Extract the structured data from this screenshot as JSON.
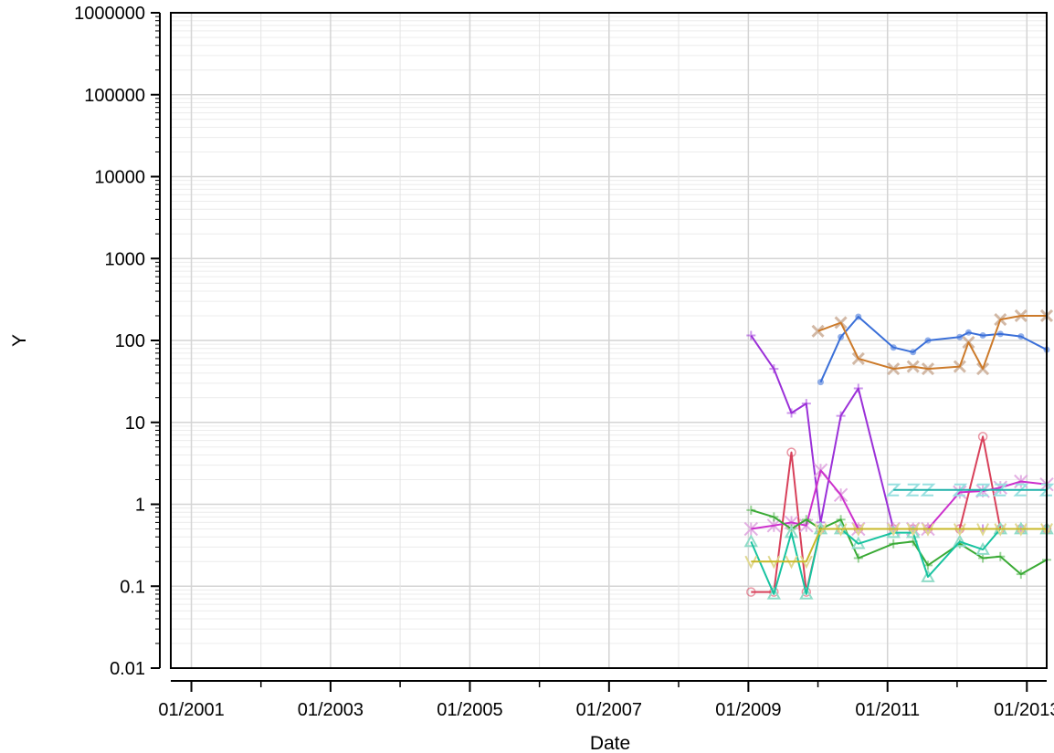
{
  "chart_data": {
    "type": "line",
    "xlabel": "Date",
    "ylabel": "Y",
    "y_scale": "log",
    "ylim": [
      0.01,
      1000000
    ],
    "xlim": [
      "2000-09-15",
      "2013-04-15"
    ],
    "y_ticks": [
      "0.01",
      "0.1",
      "1",
      "10",
      "100",
      "1000",
      "10000",
      "100000",
      "1000000"
    ],
    "x_ticks": [
      "2001-01-01",
      "2003-01-01",
      "2005-01-01",
      "2007-01-01",
      "2009-01-01",
      "2011-01-01",
      "2013-01-01"
    ],
    "x_tick_labels": [
      "01/2001",
      "01/2003",
      "01/2005",
      "01/2007",
      "01/2009",
      "01/2011",
      "01/2013"
    ],
    "grid": true,
    "legend": "none",
    "series": [
      {
        "color": "#3a6fd8",
        "marker": "dot",
        "points": [
          [
            "2010-01-15",
            31
          ],
          [
            "2010-05-01",
            110
          ],
          [
            "2010-08-01",
            195
          ],
          [
            "2011-02-01",
            82
          ],
          [
            "2011-05-15",
            72
          ],
          [
            "2011-08-01",
            100
          ],
          [
            "2012-01-15",
            110
          ],
          [
            "2012-03-01",
            125
          ],
          [
            "2012-05-15",
            115
          ],
          [
            "2012-08-15",
            120
          ],
          [
            "2012-12-01",
            112
          ],
          [
            "2013-04-15",
            77
          ]
        ]
      },
      {
        "color": "#cc7a2a",
        "marker": "x",
        "points": [
          [
            "2010-01-01",
            130
          ],
          [
            "2010-05-01",
            165
          ],
          [
            "2010-08-01",
            60
          ],
          [
            "2011-02-01",
            45
          ],
          [
            "2011-05-15",
            48
          ],
          [
            "2011-08-01",
            45
          ],
          [
            "2012-01-15",
            48
          ],
          [
            "2012-03-01",
            95
          ],
          [
            "2012-05-15",
            45
          ],
          [
            "2012-08-15",
            180
          ],
          [
            "2012-12-01",
            200
          ],
          [
            "2013-04-15",
            200
          ]
        ]
      },
      {
        "color": "#9b30d8",
        "marker": "plus",
        "points": [
          [
            "2009-01-15",
            115
          ],
          [
            "2009-05-15",
            45
          ],
          [
            "2009-08-15",
            13
          ],
          [
            "2009-11-01",
            17
          ],
          [
            "2010-01-15",
            0.6
          ],
          [
            "2010-05-01",
            12
          ],
          [
            "2010-08-01",
            26
          ],
          [
            "2011-02-01",
            0.5
          ],
          [
            "2011-05-15",
            0.5
          ],
          [
            "2011-08-01",
            0.5
          ],
          [
            "2012-01-15",
            0.5
          ],
          [
            "2012-05-15",
            0.5
          ],
          [
            "2012-12-01",
            0.5
          ],
          [
            "2013-04-15",
            0.5
          ]
        ]
      },
      {
        "color": "#d8405a",
        "marker": "circle",
        "points": [
          [
            "2009-01-15",
            0.085
          ],
          [
            "2009-05-15",
            0.085
          ],
          [
            "2009-08-15",
            4.3
          ],
          [
            "2009-11-01",
            0.085
          ],
          [
            "2010-01-15",
            0.5
          ],
          [
            "2010-05-01",
            0.5
          ],
          [
            "2010-08-01",
            0.5
          ],
          [
            "2011-02-01",
            0.5
          ],
          [
            "2011-05-15",
            0.5
          ],
          [
            "2011-08-01",
            0.5
          ],
          [
            "2012-01-15",
            0.5
          ],
          [
            "2012-05-15",
            6.7
          ],
          [
            "2012-08-15",
            0.5
          ],
          [
            "2012-12-01",
            0.5
          ],
          [
            "2013-04-15",
            0.5
          ]
        ]
      },
      {
        "color": "#cc30cc",
        "marker": "asterisk",
        "points": [
          [
            "2009-01-15",
            0.5
          ],
          [
            "2009-05-15",
            0.55
          ],
          [
            "2009-08-15",
            0.6
          ],
          [
            "2009-11-01",
            0.55
          ],
          [
            "2010-01-15",
            2.6
          ],
          [
            "2010-05-01",
            1.3
          ],
          [
            "2010-08-01",
            0.5
          ],
          [
            "2011-02-01",
            0.5
          ],
          [
            "2011-05-15",
            0.5
          ],
          [
            "2011-08-01",
            0.5
          ],
          [
            "2012-01-15",
            1.4
          ],
          [
            "2012-05-15",
            1.45
          ],
          [
            "2012-08-15",
            1.6
          ],
          [
            "2012-12-01",
            1.9
          ],
          [
            "2013-04-15",
            1.75
          ]
        ]
      },
      {
        "color": "#20b2aa",
        "marker": "z",
        "points": [
          [
            "2011-02-01",
            1.5
          ],
          [
            "2011-05-15",
            1.5
          ],
          [
            "2011-08-01",
            1.5
          ],
          [
            "2012-01-15",
            1.5
          ],
          [
            "2012-05-15",
            1.5
          ],
          [
            "2012-08-15",
            1.5
          ],
          [
            "2012-12-01",
            1.5
          ],
          [
            "2013-04-15",
            1.5
          ]
        ]
      },
      {
        "color": "#3aaa35",
        "marker": "plus",
        "points": [
          [
            "2009-01-15",
            0.85
          ],
          [
            "2009-05-15",
            0.7
          ],
          [
            "2009-08-15",
            0.5
          ],
          [
            "2009-11-01",
            0.65
          ],
          [
            "2010-01-15",
            0.5
          ],
          [
            "2010-05-01",
            0.65
          ],
          [
            "2010-08-01",
            0.22
          ],
          [
            "2011-02-01",
            0.33
          ],
          [
            "2011-05-15",
            0.35
          ],
          [
            "2011-08-01",
            0.18
          ],
          [
            "2012-01-15",
            0.33
          ],
          [
            "2012-05-15",
            0.22
          ],
          [
            "2012-08-15",
            0.23
          ],
          [
            "2012-12-01",
            0.14
          ],
          [
            "2013-04-15",
            0.21
          ]
        ]
      },
      {
        "color": "#17c3a0",
        "marker": "triangle",
        "points": [
          [
            "2009-01-15",
            0.35
          ],
          [
            "2009-05-15",
            0.08
          ],
          [
            "2009-08-15",
            0.45
          ],
          [
            "2009-11-01",
            0.08
          ],
          [
            "2010-01-15",
            0.5
          ],
          [
            "2010-05-01",
            0.5
          ],
          [
            "2010-08-01",
            0.33
          ],
          [
            "2011-02-01",
            0.45
          ],
          [
            "2011-05-15",
            0.45
          ],
          [
            "2011-08-01",
            0.13
          ],
          [
            "2012-01-15",
            0.35
          ],
          [
            "2012-05-15",
            0.28
          ],
          [
            "2012-08-15",
            0.5
          ],
          [
            "2012-12-01",
            0.5
          ],
          [
            "2013-04-15",
            0.5
          ]
        ]
      },
      {
        "color": "#c8b82a",
        "marker": "v",
        "points": [
          [
            "2009-01-15",
            0.2
          ],
          [
            "2009-05-15",
            0.2
          ],
          [
            "2009-08-15",
            0.2
          ],
          [
            "2009-11-01",
            0.2
          ],
          [
            "2010-01-15",
            0.5
          ],
          [
            "2010-05-01",
            0.5
          ],
          [
            "2010-08-01",
            0.5
          ],
          [
            "2011-02-01",
            0.5
          ],
          [
            "2011-05-15",
            0.5
          ],
          [
            "2011-08-01",
            0.5
          ],
          [
            "2012-01-15",
            0.5
          ],
          [
            "2012-05-15",
            0.5
          ],
          [
            "2012-08-15",
            0.5
          ],
          [
            "2012-12-01",
            0.5
          ],
          [
            "2013-04-15",
            0.5
          ]
        ]
      }
    ]
  }
}
